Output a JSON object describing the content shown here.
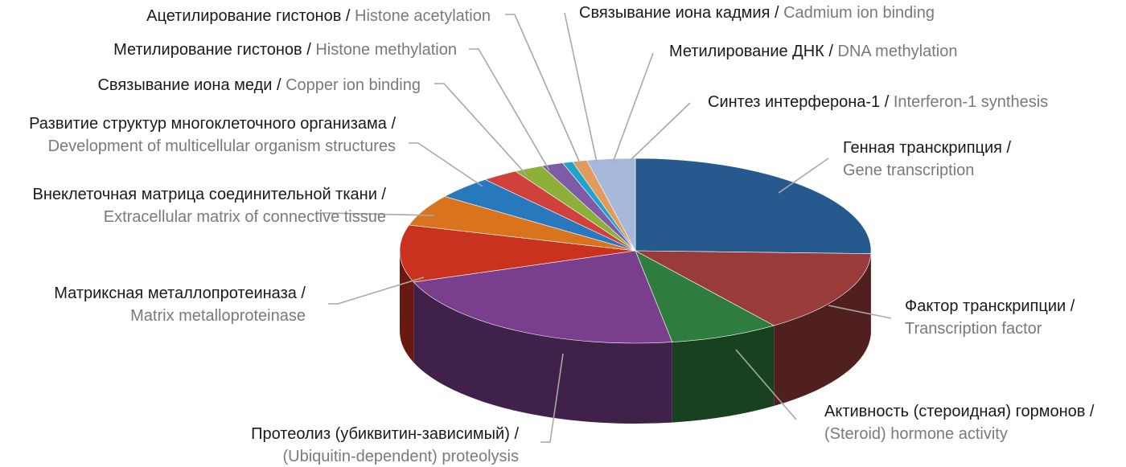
{
  "chart_data": {
    "type": "pie",
    "style": "3d",
    "slices": [
      {
        "ru": "Генная транскрипция /",
        "en": "Gene transcription",
        "value": 25.5,
        "color": "#265A8F"
      },
      {
        "ru": "Фактор транскрипции /",
        "en": "Transcription factor",
        "value": 14.5,
        "color": "#9A3B3B"
      },
      {
        "ru": "Активность (стероидная) гормонов /",
        "en": "(Steroid) hormone activity",
        "value": 7.5,
        "color": "#2E7D3E"
      },
      {
        "ru": "Протеолиз (убиквитин-зависимый) /",
        "en": "(Ubiquitin-dependent) proteolysis",
        "value": 22.0,
        "color": "#7A3F8C"
      },
      {
        "ru": "Матриксная металлопротеиназа /",
        "en": "Matrix metalloproteinase",
        "value": 10.0,
        "color": "#C8321F"
      },
      {
        "ru": "Внеклеточная матрица соединительной ткани /",
        "en": "Extracellular matrix of connective tissue",
        "value": 5.5,
        "color": "#D9731E"
      },
      {
        "ru": "Развитие структур многоклеточного организама /",
        "en": "Development of multicellular organism structures",
        "value": 4.0,
        "color": "#2878BD"
      },
      {
        "ru": "Связывание иона меди /",
        "en": "Copper ion binding",
        "value": 2.5,
        "color": "#D0403C"
      },
      {
        "ru": "Метилирование гистонов /",
        "en": "Histone methylation",
        "value": 2.0,
        "color": "#8CB03A"
      },
      {
        "ru": "Ацетилирование гистонов /",
        "en": "Histone acetylation",
        "value": 1.5,
        "color": "#7E5BA6"
      },
      {
        "ru": "Связывание иона кадмия /",
        "en": "Cadmium ion binding",
        "value": 0.7,
        "color": "#1FA3C8"
      },
      {
        "ru": "Метилирование ДНК /",
        "en": "DNA methylation",
        "value": 1.0,
        "color": "#E39A5D"
      },
      {
        "ru": "Синтез интерферона-1 /",
        "en": "Interferon-1 synthesis",
        "value": 3.3,
        "color": "#A6B9DB"
      }
    ]
  }
}
